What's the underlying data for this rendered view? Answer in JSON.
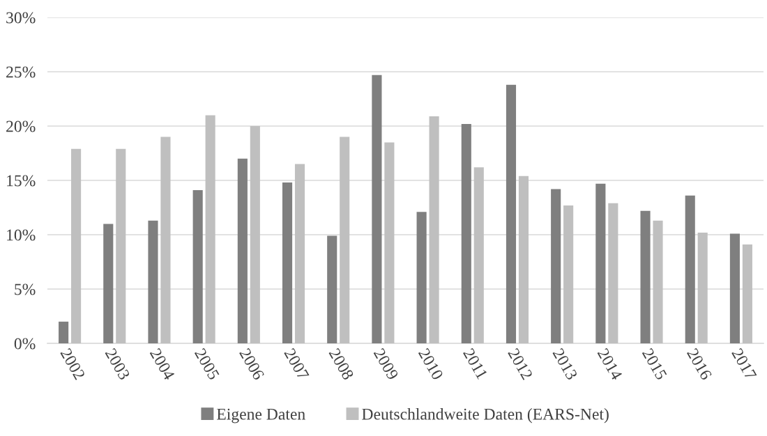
{
  "chart_data": {
    "type": "bar",
    "categories": [
      "2002",
      "2003",
      "2004",
      "2005",
      "2006",
      "2007",
      "2008",
      "2009",
      "2010",
      "2011",
      "2012",
      "2013",
      "2014",
      "2015",
      "2016",
      "2017"
    ],
    "series": [
      {
        "name": "Eigene Daten",
        "color": "#7f7f7f",
        "values": [
          2.0,
          11.0,
          11.3,
          14.1,
          17.0,
          14.8,
          9.9,
          24.7,
          12.1,
          20.2,
          23.8,
          14.2,
          14.7,
          12.2,
          13.6,
          10.1
        ]
      },
      {
        "name": "Deutschlandweite Daten (EARS-Net)",
        "color": "#bfbfbf",
        "values": [
          17.9,
          17.9,
          19.0,
          21.0,
          20.0,
          16.5,
          19.0,
          18.5,
          20.9,
          16.2,
          15.4,
          12.7,
          12.9,
          11.3,
          10.2,
          9.1
        ]
      }
    ],
    "ylim": [
      0,
      30
    ],
    "yticks": [
      {
        "value": 0,
        "label": "0%"
      },
      {
        "value": 5,
        "label": "5%"
      },
      {
        "value": 10,
        "label": "10%"
      },
      {
        "value": 15,
        "label": "15%"
      },
      {
        "value": 20,
        "label": "20%"
      },
      {
        "value": 25,
        "label": "25%"
      },
      {
        "value": 30,
        "label": "30%"
      }
    ],
    "grid": "y",
    "legend": "bottom"
  }
}
